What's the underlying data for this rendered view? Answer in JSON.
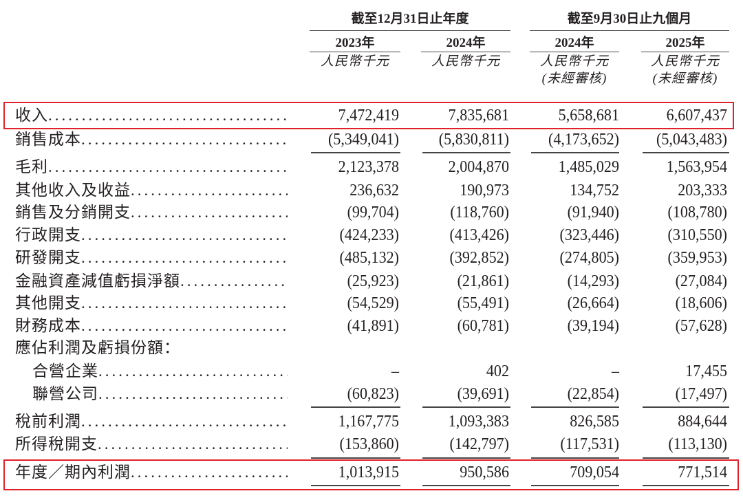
{
  "header": {
    "groups": [
      "截至12月31日止年度",
      "截至9月30日止九個月"
    ],
    "years": [
      "2023年",
      "2024年",
      "2024年",
      "2025年"
    ],
    "units": [
      "人民幣千元",
      "人民幣千元",
      "人民幣千元",
      "人民幣千元"
    ],
    "unaudited": [
      "",
      "",
      "(未經審核)",
      "(未經審核)"
    ]
  },
  "highlight_color": "#e0202a",
  "rows": [
    {
      "label": "收入",
      "values": [
        "7,472,419",
        "7,835,681",
        "5,658,681",
        "6,607,437"
      ],
      "highlighted": true
    },
    {
      "label": "銷售成本",
      "values": [
        "(5,349,041)",
        "(5,830,811)",
        "(4,173,652)",
        "(5,043,483)"
      ]
    },
    {
      "label": "毛利",
      "values": [
        "2,123,378",
        "2,004,870",
        "1,485,029",
        "1,563,954"
      ]
    },
    {
      "label": "其他收入及收益",
      "values": [
        "236,632",
        "190,973",
        "134,752",
        "203,333"
      ]
    },
    {
      "label": "銷售及分銷開支",
      "values": [
        "(99,704)",
        "(118,760)",
        "(91,940)",
        "(108,780)"
      ]
    },
    {
      "label": "行政開支",
      "values": [
        "(424,233)",
        "(413,426)",
        "(323,446)",
        "(310,550)"
      ]
    },
    {
      "label": "研發開支",
      "values": [
        "(485,132)",
        "(392,852)",
        "(274,805)",
        "(359,953)"
      ]
    },
    {
      "label": "金融資產減值虧損淨額",
      "values": [
        "(25,923)",
        "(21,861)",
        "(14,293)",
        "(27,084)"
      ]
    },
    {
      "label": "其他開支",
      "values": [
        "(54,529)",
        "(55,491)",
        "(26,664)",
        "(18,606)"
      ]
    },
    {
      "label": "財務成本",
      "values": [
        "(41,891)",
        "(60,781)",
        "(39,194)",
        "(57,628)"
      ]
    },
    {
      "label": "應佔利潤及虧損份額：",
      "values": [
        "",
        "",
        "",
        ""
      ]
    },
    {
      "label": "合營企業",
      "values": [
        "–",
        "402",
        "–",
        "17,455"
      ]
    },
    {
      "label": "聯營公司",
      "values": [
        "(60,823)",
        "(39,691)",
        "(22,854)",
        "(17,497)"
      ]
    },
    {
      "label": "稅前利潤",
      "values": [
        "1,167,775",
        "1,093,383",
        "826,585",
        "884,644"
      ]
    },
    {
      "label": "所得稅開支",
      "values": [
        "(153,860)",
        "(142,797)",
        "(117,531)",
        "(113,130)"
      ]
    },
    {
      "label": "年度／期內利潤",
      "values": [
        "1,013,915",
        "950,586",
        "709,054",
        "771,514"
      ],
      "highlighted": true
    }
  ]
}
